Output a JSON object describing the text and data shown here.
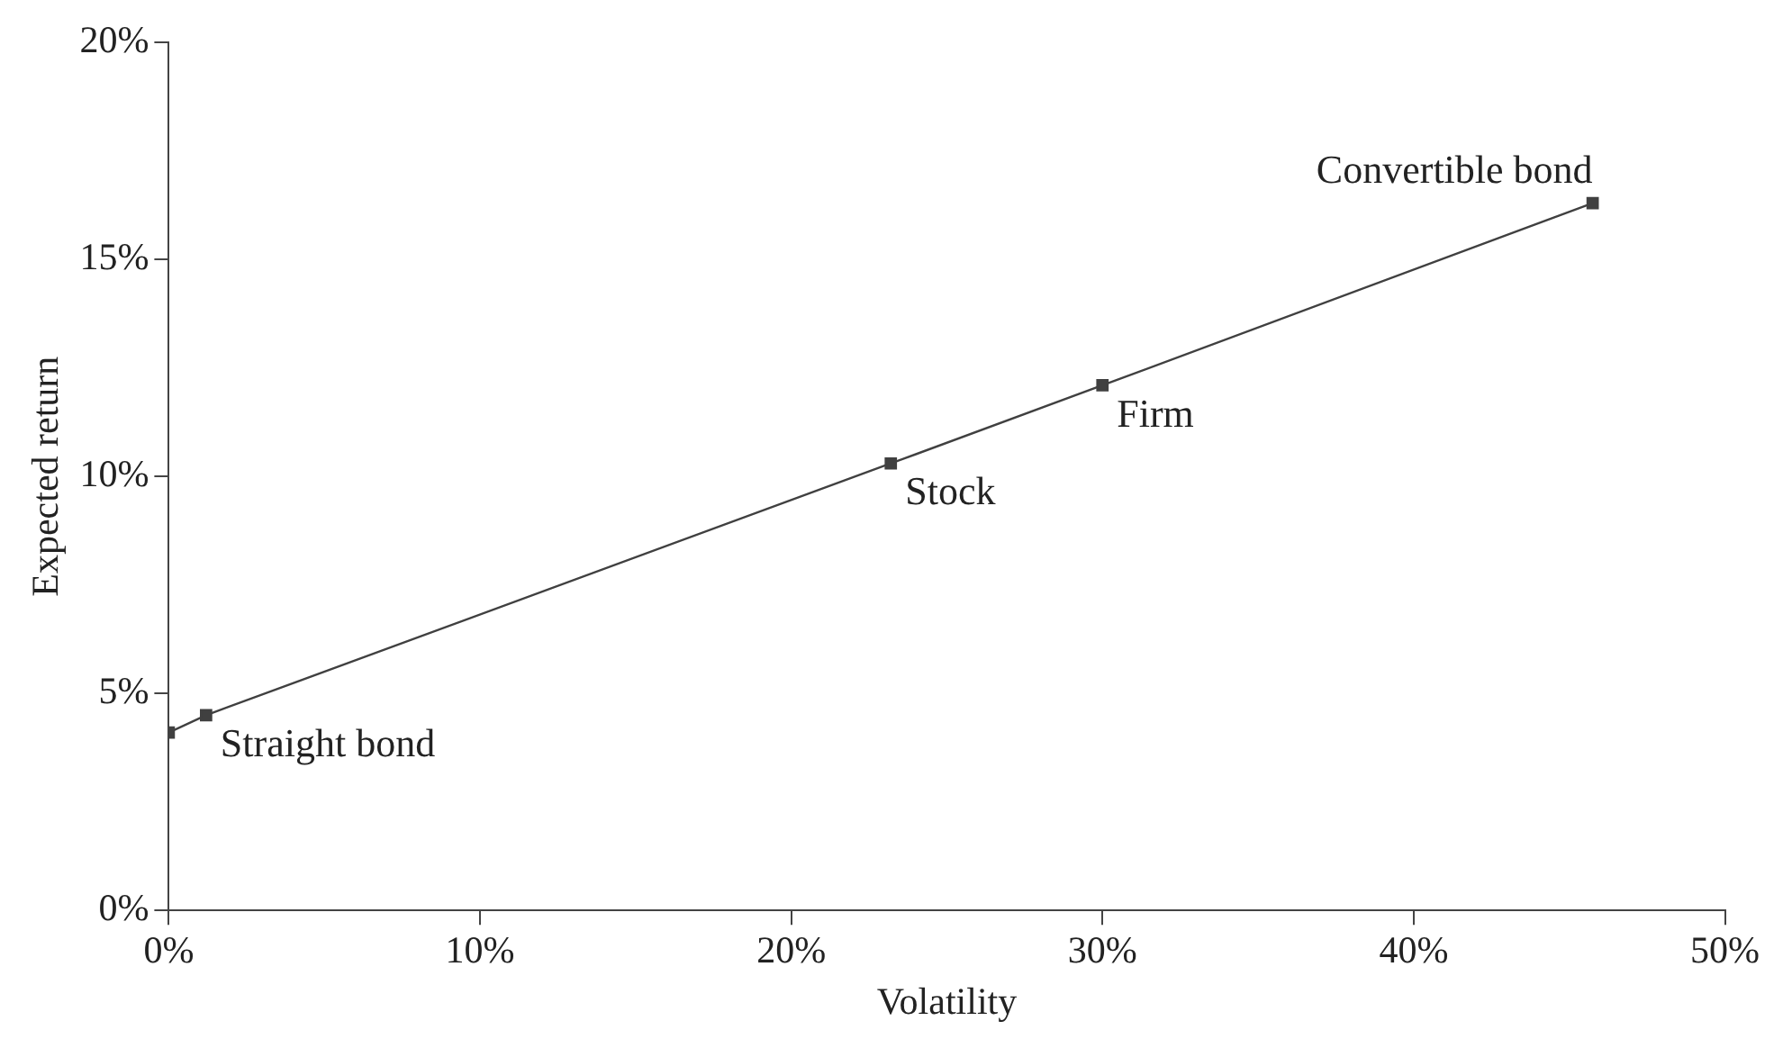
{
  "chart_data": {
    "type": "line",
    "xlabel": "Volatility",
    "ylabel": "Expected return",
    "x": [
      0,
      1.2,
      23.2,
      30,
      45.75
    ],
    "series": [
      {
        "color": "#404040",
        "values": [
          4.1,
          4.5,
          10.3,
          12.1,
          16.3
        ]
      }
    ],
    "marker": "square",
    "line_style": "solid",
    "grid": false,
    "legend": false,
    "xlim": [
      0,
      50
    ],
    "xticks": [
      {
        "value": 0,
        "label": "0%"
      },
      {
        "value": 10,
        "label": "10%"
      },
      {
        "value": 20,
        "label": "20%"
      },
      {
        "value": 30,
        "label": "30%"
      },
      {
        "value": 40,
        "label": "40%"
      },
      {
        "value": 50,
        "label": "50%"
      }
    ],
    "ylim": [
      0,
      20
    ],
    "yticks": [
      {
        "value": 0,
        "label": "0%"
      },
      {
        "value": 5,
        "label": "5%"
      },
      {
        "value": 10,
        "label": "10%"
      },
      {
        "value": 15,
        "label": "15%"
      },
      {
        "value": 20,
        "label": "20%"
      }
    ],
    "annotations": [
      {
        "text": "Straight bond",
        "x": 1.2,
        "y": 4.5
      },
      {
        "text": "Stock",
        "x": 23.2,
        "y": 10.3
      },
      {
        "text": "Firm",
        "x": 30,
        "y": 12.1
      },
      {
        "text": "Convertible bond",
        "x": 45.75,
        "y": 16.3
      }
    ]
  }
}
